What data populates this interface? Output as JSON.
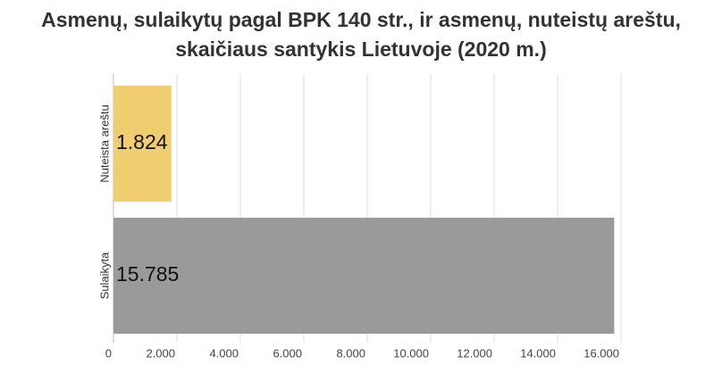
{
  "chart_data": {
    "type": "bar",
    "orientation": "horizontal",
    "title": "Asmenų, sulaikytų pagal BPK 140 str., ir asmenų, nuteistų areštu, skaičiaus santykis Lietuvoje (2020 m.)",
    "categories": [
      "Nuteista areštu",
      "Sulaikyta"
    ],
    "values": [
      1824,
      15785
    ],
    "value_labels": [
      "1.824",
      "15.785"
    ],
    "colors": [
      "#f0cd6e",
      "#9a9a9a"
    ],
    "xlim": [
      0,
      16000
    ],
    "xticks": [
      0,
      {
        "value": 2000,
        "label": "2.000"
      },
      {
        "value": 4000,
        "label": "4.000"
      },
      {
        "value": 6000,
        "label": "6.000"
      },
      {
        "value": 8000,
        "label": "8.000"
      },
      {
        "value": 10000,
        "label": "10.000"
      },
      {
        "value": 12000,
        "label": "12.000"
      },
      {
        "value": 14000,
        "label": "14.000"
      },
      {
        "value": 16000,
        "label": "16.000"
      }
    ],
    "grid": true
  }
}
